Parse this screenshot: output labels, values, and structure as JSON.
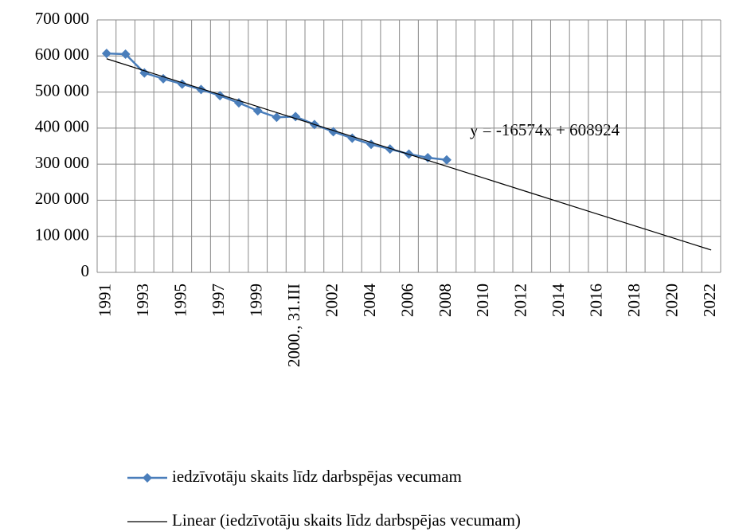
{
  "chart_data": {
    "type": "line",
    "categories": [
      "1991",
      null,
      "1993",
      null,
      "1995",
      null,
      "1997",
      null,
      "1999",
      null,
      "2000., 31.III",
      null,
      "2002",
      null,
      "2004",
      null,
      "2006",
      null,
      "2008",
      null,
      "2010",
      null,
      "2012",
      null,
      "2014",
      null,
      "2016",
      null,
      "2018",
      null,
      "2020",
      null,
      "2022"
    ],
    "series": [
      {
        "name": "iedzīvotāju skaits līdz darbspējas vecumam",
        "color": "#4a7ebb",
        "marker": "diamond",
        "values": [
          607000,
          605000,
          553000,
          537000,
          522000,
          507000,
          490000,
          470000,
          448000,
          430000,
          432000,
          410000,
          390000,
          372000,
          355000,
          342000,
          328000,
          318000,
          312000,
          null,
          null,
          null,
          null,
          null,
          null,
          null,
          null,
          null,
          null,
          null,
          null,
          null,
          null
        ]
      },
      {
        "name": "Linear (iedzīvotāju skaits līdz darbspējas vecumam)",
        "color": "#000000",
        "marker": "none",
        "values": [
          592350,
          575776,
          559202,
          542628,
          526054,
          509480,
          492906,
          476332,
          459758,
          443184,
          426610,
          410036,
          393462,
          376888,
          360314,
          343740,
          327166,
          310592,
          294018,
          277444,
          260870,
          244296,
          227722,
          211148,
          194574,
          178000,
          161426,
          144852,
          128278,
          111704,
          95130,
          78556,
          61982
        ]
      }
    ],
    "annotation": "y = -16574x + 608924",
    "ylim": [
      0,
      700000
    ],
    "yticks": [
      0,
      {
        "value": 100000,
        "label": "100 000"
      },
      {
        "value": 200000,
        "label": "200 000"
      },
      {
        "value": 300000,
        "label": "300 000"
      },
      {
        "value": 400000,
        "label": "400 000"
      },
      {
        "value": 500000,
        "label": "500 000"
      },
      {
        "value": 600000,
        "label": "600 000"
      },
      {
        "value": 700000,
        "label": "700 000"
      }
    ],
    "grid": true,
    "legend": "bottom"
  }
}
